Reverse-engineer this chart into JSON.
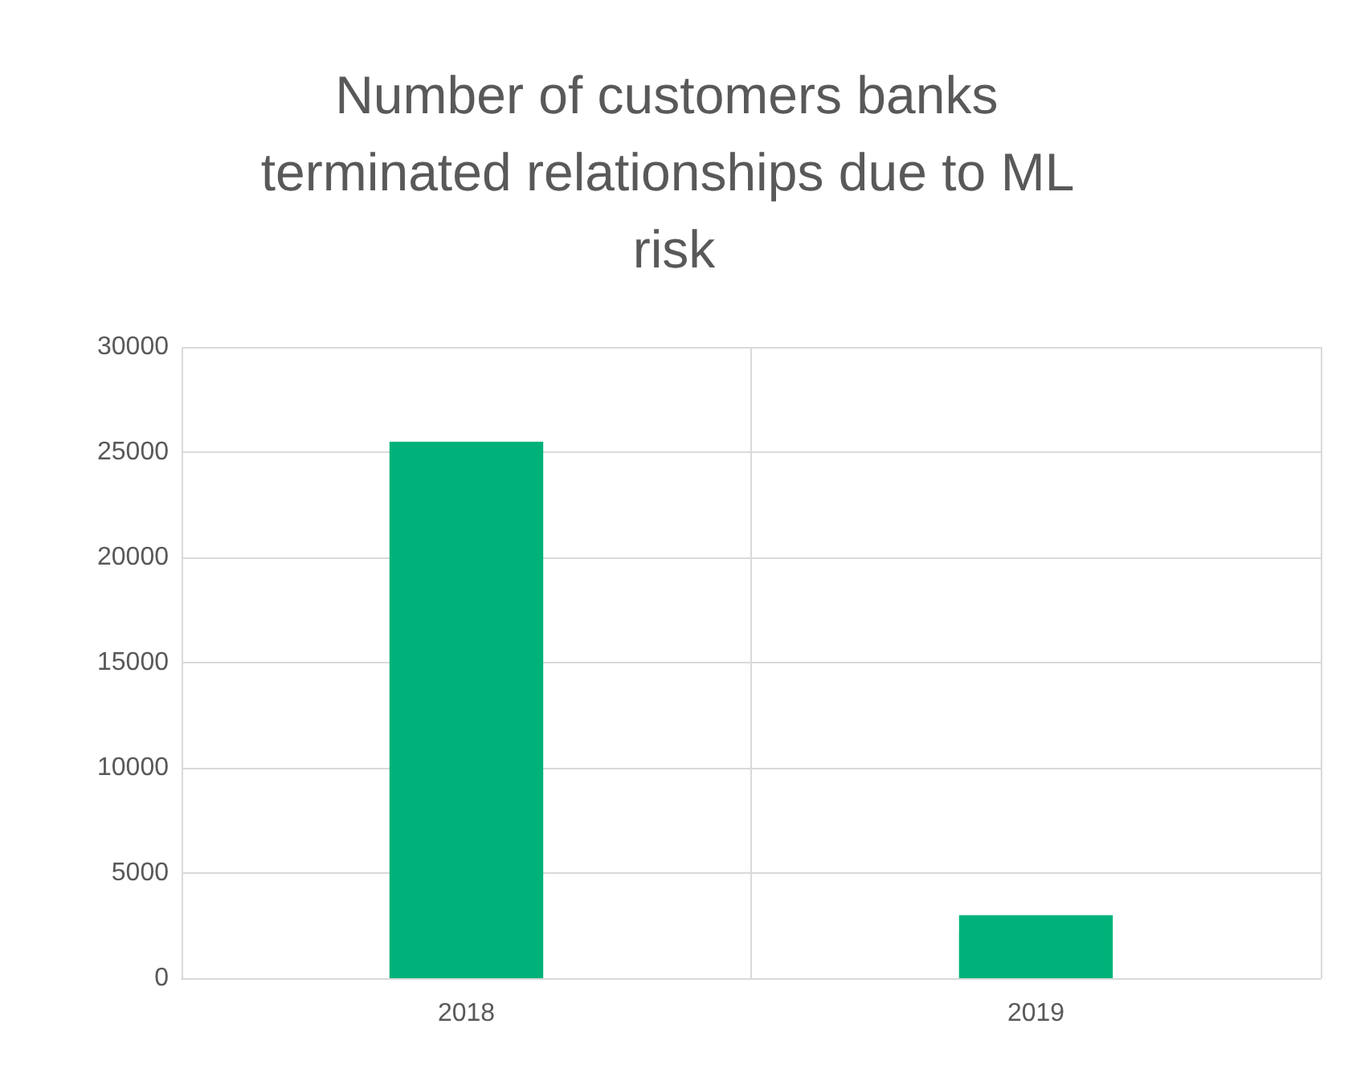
{
  "chart_data": {
    "type": "bar",
    "title": "Number of customers banks terminated relationships due to ML risk",
    "categories": [
      "2018",
      "2019"
    ],
    "values": [
      25500,
      3000
    ],
    "color": "#00b27a",
    "ylim": [
      0,
      30000
    ],
    "yticks": [
      0,
      5000,
      10000,
      15000,
      20000,
      25000,
      30000
    ],
    "grid": true
  }
}
